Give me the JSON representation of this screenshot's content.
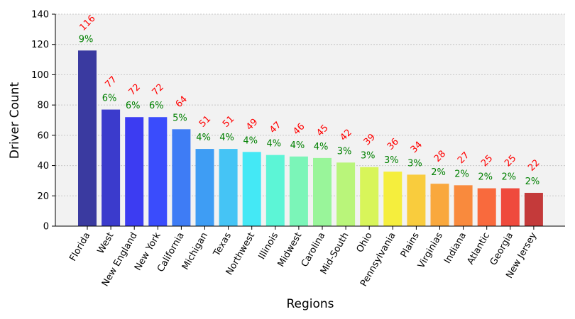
{
  "chart_data": {
    "type": "bar",
    "title": "",
    "xlabel": "Regions",
    "ylabel": "Driver Count",
    "ylim": [
      0,
      140
    ],
    "yticks": [
      0,
      20,
      40,
      60,
      80,
      100,
      120,
      140
    ],
    "grid": "horizontal dotted",
    "categories": [
      "Florida",
      "West",
      "New England",
      "New York",
      "California",
      "Michigan",
      "Texas",
      "Northwest",
      "Illinois",
      "Midwest",
      "Carolina",
      "Mid-South",
      "Ohio",
      "Pennsylvania",
      "Plains",
      "Virginias",
      "Indiana",
      "Atlantic",
      "Georgia",
      "New Jersey"
    ],
    "values": [
      116,
      77,
      72,
      72,
      64,
      51,
      51,
      49,
      47,
      46,
      45,
      42,
      39,
      36,
      34,
      28,
      27,
      25,
      25,
      22
    ],
    "percent_labels": [
      "9%",
      "6%",
      "6%",
      "6%",
      "5%",
      "4%",
      "4%",
      "4%",
      "4%",
      "4%",
      "4%",
      "3%",
      "3%",
      "3%",
      "3%",
      "2%",
      "2%",
      "2%",
      "2%",
      "2%"
    ],
    "colors": {
      "plot_background": "#f2f2f2",
      "value_label": "#ff0000",
      "percent_label": "#008000",
      "bars": [
        "#3a3aa0",
        "#3b3bcc",
        "#3c3cf2",
        "#3a4cfc",
        "#3e7cf5",
        "#3e9df4",
        "#45c4f5",
        "#44e8f5",
        "#5cf5d6",
        "#7bf5b8",
        "#99f59a",
        "#b9f57a",
        "#d8f55a",
        "#f5ee3d",
        "#f9cc3d",
        "#f9a83d",
        "#f98a3d",
        "#f96a3d",
        "#ef4a3d",
        "#c43a3a"
      ]
    }
  }
}
